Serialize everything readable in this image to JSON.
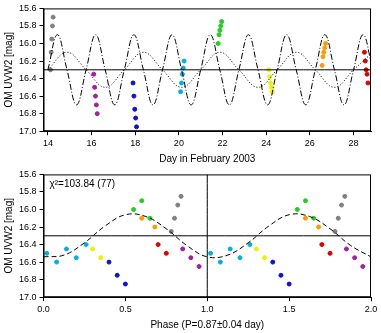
{
  "chart_data": [
    {
      "type": "scatter",
      "x_label": "Day in February 2003",
      "y_label": "OM UVW2 [mag]",
      "xlim": [
        13.8,
        28.8
      ],
      "xticks": [
        14,
        16,
        18,
        20,
        22,
        24,
        26,
        28
      ],
      "ylim": [
        17.0,
        15.6
      ],
      "yticks": [
        15.6,
        15.8,
        {
          "value": 16.0,
          "label": "16.0"
        },
        16.2,
        16.4,
        16.6,
        16.8,
        {
          "value": 17.0,
          "label": "17.0"
        }
      ],
      "grid": false,
      "series": [
        {
          "type": "line",
          "color": "#000000",
          "line_style": "solid",
          "x": [
            13.8,
            28.8
          ],
          "values": [
            16.3,
            16.3
          ]
        },
        {
          "type": "line",
          "color": "#000000",
          "line_style": "dashdot",
          "x": [
            14,
            14.4375,
            14.875,
            15.3125,
            15.75,
            16.1875,
            16.625,
            17.0625,
            17.5,
            17.9375,
            18.375,
            18.8125,
            19.25,
            19.6875,
            20.125,
            20.5625,
            21,
            21.4375,
            21.875,
            22.3125,
            22.75,
            23.1875,
            23.625,
            24.0625,
            24.5,
            24.9375,
            25.375,
            25.8125,
            26.25,
            26.6875,
            27.125,
            27.5625,
            28,
            28.4375,
            28.875
          ],
          "values": [
            16.3,
            15.9,
            16.3,
            16.7,
            16.3,
            15.9,
            16.3,
            16.7,
            16.3,
            15.9,
            16.3,
            16.7,
            16.3,
            15.9,
            16.3,
            16.7,
            16.3,
            15.9,
            16.3,
            16.7,
            16.3,
            15.9,
            16.3,
            16.7,
            16.3,
            15.9,
            16.3,
            16.7,
            16.3,
            15.9,
            16.3,
            16.7,
            16.3,
            15.9,
            16.3
          ]
        },
        {
          "type": "line",
          "color": "#000000",
          "line_style": "dotted",
          "x": [
            14,
            14.875,
            15.75,
            16.625,
            17.5,
            18.375,
            19.25,
            20.125,
            21,
            21.875,
            22.75,
            23.625,
            24.5,
            25.375,
            26.25,
            27.125,
            28,
            28.875
          ],
          "values": [
            16.3,
            16.1,
            16.3,
            16.5,
            16.3,
            16.1,
            16.3,
            16.5,
            16.3,
            16.1,
            16.3,
            16.5,
            16.3,
            16.1,
            16.3,
            16.5,
            16.3,
            16.1
          ]
        },
        {
          "type": "scatter",
          "color": "#808080",
          "marker": "circle",
          "x": [
            14.12,
            14.15,
            14.18,
            14.21,
            14.24
          ],
          "values": [
            16.3,
            16.1,
            15.95,
            15.8,
            15.7
          ]
        },
        {
          "type": "scatter",
          "color": "#a020a0",
          "marker": "circle",
          "x": [
            16.1,
            16.14,
            16.18,
            16.22,
            16.26
          ],
          "values": [
            16.35,
            16.5,
            16.6,
            16.7,
            16.8
          ]
        },
        {
          "type": "scatter",
          "color": "#1010d0",
          "marker": "circle",
          "x": [
            17.9,
            17.94,
            17.98,
            18.02,
            18.06
          ],
          "values": [
            16.45,
            16.6,
            16.75,
            16.85,
            16.95
          ]
        },
        {
          "type": "scatter",
          "color": "#00b0e0",
          "marker": "circle",
          "x": [
            20.08,
            20.12,
            20.16,
            20.2,
            20.24
          ],
          "values": [
            16.55,
            16.45,
            16.35,
            16.28,
            16.2
          ]
        },
        {
          "type": "scatter",
          "color": "#20d020",
          "marker": "circle",
          "x": [
            21.8,
            21.84,
            21.88,
            21.92,
            21.96
          ],
          "values": [
            16.0,
            15.9,
            15.85,
            15.8,
            15.75
          ]
        },
        {
          "type": "scatter",
          "color": "#f0f000",
          "marker": "circle",
          "x": [
            24.12,
            24.16,
            24.2,
            24.24,
            24.28
          ],
          "values": [
            16.3,
            16.38,
            16.45,
            16.5,
            16.55
          ]
        },
        {
          "type": "scatter",
          "color": "#ff9900",
          "marker": "circle",
          "x": [
            26.56,
            26.6,
            26.64,
            26.68,
            26.72
          ],
          "values": [
            16.25,
            16.15,
            16.1,
            16.05,
            16.0
          ]
        },
        {
          "type": "scatter",
          "color": "#e00000",
          "marker": "circle",
          "x": [
            28.5,
            28.54,
            28.58,
            28.62,
            28.66
          ],
          "values": [
            16.1,
            16.2,
            16.3,
            16.35,
            16.45
          ]
        }
      ]
    },
    {
      "type": "scatter",
      "x_label": "Phase (P=0.87±0.04 day)",
      "y_label": "OM UVW2 [mag]",
      "annotations": [
        "χ²=103.84 (77)"
      ],
      "xlim": [
        0,
        2
      ],
      "xticks": [
        {
          "value": 0,
          "label": "0.0"
        },
        0.5,
        {
          "value": 1,
          "label": "1.0"
        },
        1.5,
        {
          "value": 2,
          "label": "2.0"
        }
      ],
      "ylim": [
        17.0,
        15.6
      ],
      "yticks": [
        15.6,
        15.8,
        {
          "value": 16.0,
          "label": "16.0"
        },
        16.2,
        16.4,
        16.6,
        16.8,
        {
          "value": 17.0,
          "label": "17.0"
        }
      ],
      "grid": false,
      "series": [
        {
          "type": "line",
          "color": "#000000",
          "line_style": "solid",
          "x": [
            0,
            2
          ],
          "values": [
            16.3,
            16.3
          ]
        },
        {
          "type": "line",
          "color": "#000000",
          "line_style": "solid",
          "x": [
            1,
            1
          ],
          "values": [
            15.6,
            17.0
          ]
        },
        {
          "type": "line",
          "color": "#000000",
          "line_style": "dashed",
          "x": [
            0,
            0.125,
            0.25,
            0.375,
            0.5,
            0.625,
            0.75,
            0.875,
            1,
            1.125,
            1.25,
            1.375,
            1.5,
            1.625,
            1.75,
            1.875,
            2
          ],
          "values": [
            16.54,
            16.52,
            16.38,
            16.19,
            16.06,
            16.08,
            16.22,
            16.41,
            16.54,
            16.52,
            16.38,
            16.19,
            16.06,
            16.08,
            16.22,
            16.41,
            16.54
          ]
        },
        {
          "type": "scatter",
          "color": "#808080",
          "marker": "circle",
          "x": [
            0.78,
            0.8,
            0.82,
            0.84,
            1.78,
            1.8,
            1.82,
            1.84
          ],
          "values": [
            16.25,
            16.1,
            15.95,
            15.85,
            16.25,
            16.1,
            15.95,
            15.85
          ]
        },
        {
          "type": "scatter",
          "color": "#00b0e0",
          "marker": "circle",
          "x": [
            0.02,
            0.08,
            0.14,
            0.2,
            0.26,
            1.02,
            1.08,
            1.14,
            1.2,
            1.26
          ],
          "values": [
            16.5,
            16.6,
            16.45,
            16.55,
            16.4,
            16.5,
            16.6,
            16.45,
            16.55,
            16.4
          ]
        },
        {
          "type": "scatter",
          "color": "#a020a0",
          "marker": "circle",
          "x": [
            0.85,
            0.9,
            0.95,
            1.85,
            1.9,
            1.95
          ],
          "values": [
            16.45,
            16.55,
            16.65,
            16.45,
            16.55,
            16.65
          ]
        },
        {
          "type": "scatter",
          "color": "#1010d0",
          "marker": "circle",
          "x": [
            0.4,
            0.45,
            0.5,
            1.4,
            1.45,
            1.5
          ],
          "values": [
            16.6,
            16.75,
            16.85,
            16.6,
            16.75,
            16.85
          ]
        },
        {
          "type": "scatter",
          "color": "#20d020",
          "marker": "circle",
          "x": [
            0.55,
            0.6,
            0.65,
            1.55,
            1.6,
            1.65
          ],
          "values": [
            16.0,
            15.9,
            16.1,
            16.0,
            15.9,
            16.1
          ]
        },
        {
          "type": "scatter",
          "color": "#f0f000",
          "marker": "circle",
          "x": [
            0.3,
            0.35,
            1.3,
            1.35
          ],
          "values": [
            16.45,
            16.55,
            16.45,
            16.55
          ]
        },
        {
          "type": "scatter",
          "color": "#ff9900",
          "marker": "circle",
          "x": [
            0.6,
            0.68,
            1.6,
            1.68
          ],
          "values": [
            16.1,
            16.2,
            16.1,
            16.2
          ]
        },
        {
          "type": "scatter",
          "color": "#e00000",
          "marker": "circle",
          "x": [
            0.7,
            0.75,
            1.7,
            1.75
          ],
          "values": [
            16.4,
            16.5,
            16.4,
            16.5
          ]
        }
      ]
    }
  ]
}
